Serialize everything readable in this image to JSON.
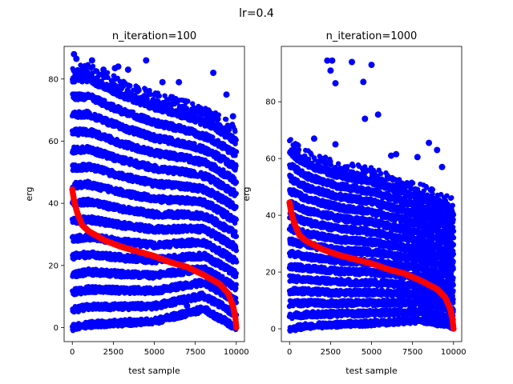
{
  "suptitle": "lr=0.4",
  "chart_data": [
    {
      "type": "scatter",
      "title": "n_iteration=100",
      "xlabel": "test sample",
      "ylabel": "erg",
      "xlim": [
        -500,
        10500
      ],
      "ylim": [
        -4.5,
        90.5
      ],
      "xticks": [
        0,
        2500,
        5000,
        7500,
        10000
      ],
      "yticks": [
        0,
        20,
        40,
        60,
        80
      ],
      "grid": false,
      "series": [
        {
          "role": "observed",
          "color": "#0000ff",
          "marker": "circle",
          "n_points": 10000,
          "x_range": [
            0,
            9999
          ],
          "band_bottom_y_at_x": [
            [
              0,
              0
            ],
            [
              1000,
              1
            ],
            [
              5000,
              2
            ],
            [
              8000,
              6
            ],
            [
              10000,
              0
            ]
          ],
          "band_top_y_at_x": [
            [
              0,
              80
            ],
            [
              1000,
              80
            ],
            [
              3000,
              75
            ],
            [
              5000,
              71
            ],
            [
              7000,
              68
            ],
            [
              8500,
              65
            ],
            [
              10000,
              60
            ]
          ],
          "outliers": [
            [
              100,
              88
            ],
            [
              250,
              86.5
            ],
            [
              1200,
              86
            ],
            [
              1900,
              83
            ],
            [
              2600,
              83.5
            ],
            [
              2800,
              84
            ],
            [
              3400,
              83
            ],
            [
              4500,
              86
            ],
            [
              5500,
              79
            ],
            [
              6500,
              79
            ],
            [
              8600,
              82
            ],
            [
              9400,
              75
            ],
            [
              9800,
              68
            ],
            [
              7000,
              7
            ],
            [
              3500,
              2.5
            ],
            [
              4200,
              2.5
            ]
          ]
        },
        {
          "role": "sorted target",
          "color": "#ff0000",
          "marker": "circle",
          "n_points": 10000,
          "curve": [
            [
              0,
              44.5
            ],
            [
              100,
              41
            ],
            [
              300,
              37
            ],
            [
              600,
              33
            ],
            [
              1000,
              31
            ],
            [
              2000,
              28
            ],
            [
              3000,
              26
            ],
            [
              4000,
              24.5
            ],
            [
              5000,
              23
            ],
            [
              6000,
              21
            ],
            [
              7000,
              19.5
            ],
            [
              8000,
              17
            ],
            [
              9000,
              14
            ],
            [
              9500,
              11
            ],
            [
              9800,
              7
            ],
            [
              9950,
              3
            ],
            [
              10000,
              0
            ]
          ]
        }
      ]
    },
    {
      "type": "scatter",
      "title": "n_iteration=1000",
      "xlabel": "test sample",
      "ylabel": "erg",
      "xlim": [
        -500,
        10500
      ],
      "ylim": [
        -4.5,
        99.5
      ],
      "xticks": [
        0,
        2500,
        5000,
        7500,
        10000
      ],
      "yticks": [
        0,
        20,
        40,
        60,
        80
      ],
      "grid": false,
      "series": [
        {
          "role": "observed",
          "color": "#0000ff",
          "marker": "circle",
          "n_points": 10000,
          "x_range": [
            0,
            9999
          ],
          "band_bottom_y_at_x": [
            [
              0,
              0
            ],
            [
              1000,
              1
            ],
            [
              5000,
              2
            ],
            [
              8000,
              3
            ],
            [
              10000,
              1
            ]
          ],
          "band_top_y_at_x": [
            [
              0,
              62
            ],
            [
              1000,
              58
            ],
            [
              3000,
              54
            ],
            [
              5000,
              52
            ],
            [
              7000,
              48
            ],
            [
              8500,
              45
            ],
            [
              10000,
              41
            ]
          ],
          "outliers": [
            [
              2300,
              94.5
            ],
            [
              2600,
              94.5
            ],
            [
              2500,
              91
            ],
            [
              2800,
              86.5
            ],
            [
              3800,
              94
            ],
            [
              4500,
              87
            ],
            [
              5000,
              93
            ],
            [
              5400,
              75.5
            ],
            [
              4600,
              74
            ],
            [
              6200,
              61
            ],
            [
              6500,
              61.5
            ],
            [
              7800,
              60.5
            ],
            [
              8500,
              65.5
            ],
            [
              9300,
              57
            ],
            [
              9000,
              63
            ],
            [
              1500,
              67
            ],
            [
              2800,
              65
            ]
          ]
        },
        {
          "role": "sorted target",
          "color": "#ff0000",
          "marker": "circle",
          "n_points": 10000,
          "curve": [
            [
              0,
              44.5
            ],
            [
              100,
              41
            ],
            [
              300,
              37
            ],
            [
              600,
              33
            ],
            [
              1000,
              31
            ],
            [
              2000,
              28
            ],
            [
              3000,
              26
            ],
            [
              4000,
              24.5
            ],
            [
              5000,
              23
            ],
            [
              6000,
              21
            ],
            [
              7000,
              19.5
            ],
            [
              8000,
              17
            ],
            [
              9000,
              14
            ],
            [
              9500,
              11
            ],
            [
              9800,
              7
            ],
            [
              9950,
              3
            ],
            [
              10000,
              0
            ]
          ]
        }
      ]
    }
  ]
}
